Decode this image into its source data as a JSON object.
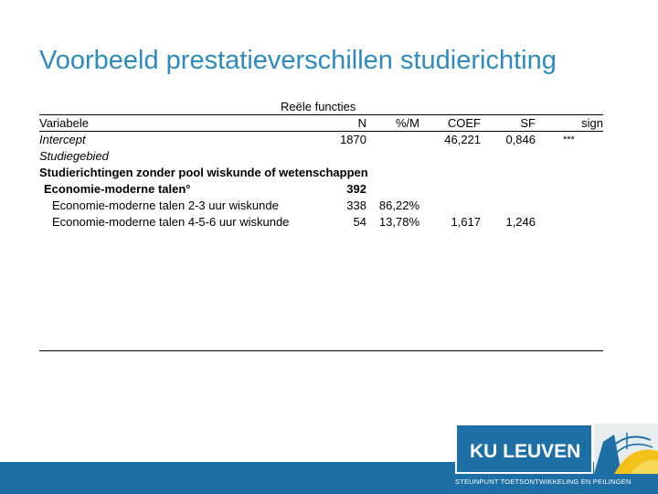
{
  "title": "Voorbeeld prestatieverschillen studierichting",
  "table": {
    "group_header": "Reële functies",
    "columns": {
      "variable": "Variabele",
      "n": "N",
      "pct": "%/M",
      "coef": "COEF",
      "sf": "SF",
      "sign": "sign"
    },
    "rows": [
      {
        "label": "Intercept",
        "n": "1870",
        "pct": "",
        "coef": "46,221",
        "sf": "0,846",
        "sign": "***"
      },
      {
        "label": "Studiegebied",
        "n": "",
        "pct": "",
        "coef": "",
        "sf": "",
        "sign": ""
      },
      {
        "label": "Studierichtingen zonder pool wiskunde of wetenschappen",
        "n": "",
        "pct": "",
        "coef": "",
        "sf": "",
        "sign": ""
      },
      {
        "label": "Economie-moderne talen°",
        "n": "392",
        "pct": "",
        "coef": "",
        "sf": "",
        "sign": ""
      },
      {
        "label": "Economie-moderne talen 2-3 uur wiskunde",
        "n": "338",
        "pct": "86,22%",
        "coef": "",
        "sf": "",
        "sign": ""
      },
      {
        "label": "Economie-moderne talen 4-5-6 uur wiskunde",
        "n": "54",
        "pct": "13,78%",
        "coef": "1,617",
        "sf": "1,246",
        "sign": ""
      }
    ]
  },
  "logo": {
    "name": "KU LEUVEN",
    "tagline": "STEUNPUNT TOETSONTWIKKELING EN PEILINGEN"
  },
  "colors": {
    "title": "#2e8bc0",
    "brand_blue": "#1d6fa5",
    "emblem_yellow": "#f2c21b"
  }
}
